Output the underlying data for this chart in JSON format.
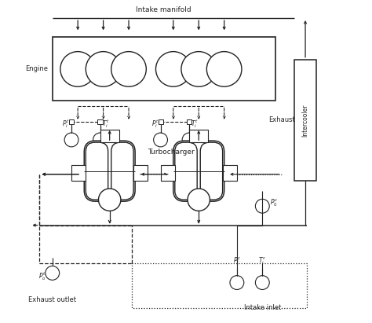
{
  "bg_color": "#ffffff",
  "line_color": "#222222",
  "figsize": [
    4.74,
    4.11
  ],
  "dpi": 100,
  "xlim": [
    0,
    100
  ],
  "ylim": [
    0,
    100
  ]
}
